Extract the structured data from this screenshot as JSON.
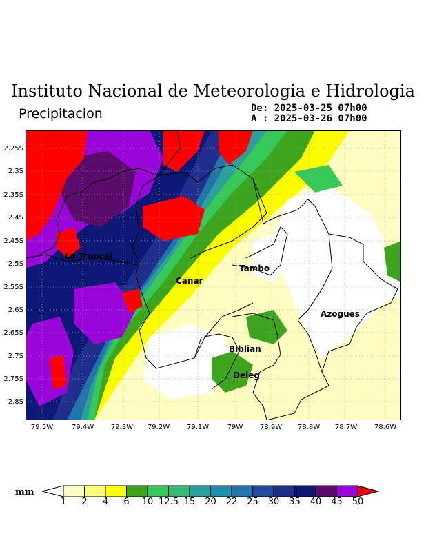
{
  "header": {
    "title": "Instituto Nacional de Meteorologia e Hidrologia",
    "subtitle": "Precipitacion",
    "date_from": "De: 2025-03-25 07h00",
    "date_to": "A : 2025-03-26 07h00"
  },
  "axes": {
    "y_ticks": [
      "2.25S",
      "2.3S",
      "2.35S",
      "2.4S",
      "2.45S",
      "2.5S",
      "2.55S",
      "2.6S",
      "2.65S",
      "2.7S",
      "2.75S",
      "2.8S"
    ],
    "x_ticks": [
      "79.5W",
      "79.4W",
      "79.3W",
      "79.2W",
      "79.1W",
      "79W",
      "78.9W",
      "78.8W",
      "78.7W",
      "78.6W"
    ]
  },
  "places": {
    "la_troncal": "La Troncal",
    "tambo": "Tambo",
    "canar": "Canar",
    "azogues": "Azogues",
    "biblian": "Biblian",
    "deleg": "Deleg"
  },
  "colorbar": {
    "unit": "mm",
    "labels": [
      "1",
      "2",
      "4",
      "6",
      "10",
      "12.5",
      "15",
      "20",
      "22",
      "25",
      "30",
      "35",
      "40",
      "45",
      "50"
    ],
    "colors": [
      "#ffffff",
      "#fefdc2",
      "#fdfd7a",
      "#fcfc00",
      "#3da51d",
      "#36c858",
      "#37b973",
      "#2ca09d",
      "#1e8eaa",
      "#2275a9",
      "#22489c",
      "#202f8d",
      "#0d1876",
      "#5a0b6b",
      "#9a06d9",
      "#e8020c"
    ]
  },
  "colors": {
    "red": "#ff0000",
    "purple": "#9a06d9",
    "navy": "#0d1876",
    "green": "#3da51d",
    "yellow": "#fcfc00"
  }
}
